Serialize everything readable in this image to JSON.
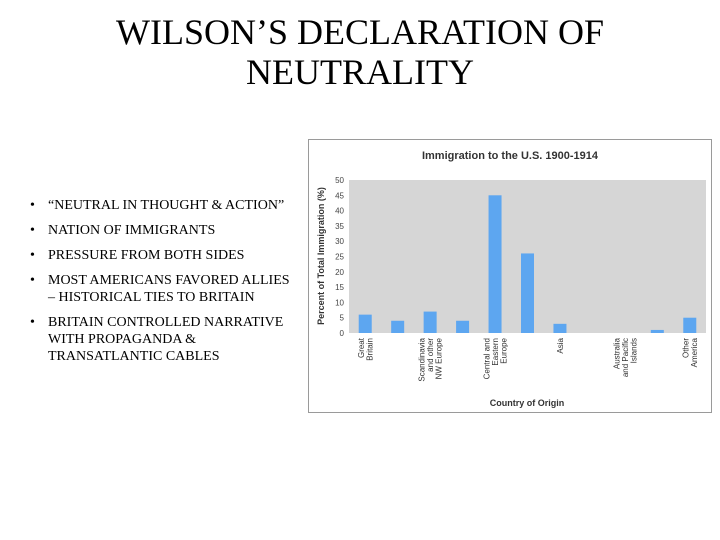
{
  "slide": {
    "title_line1": "WILSON’S DECLARATION OF",
    "title_line2": "NEUTRALITY",
    "bullets": [
      "“NEUTRAL IN THOUGHT & ACTION”",
      "NATION OF IMMIGRANTS",
      "PRESSURE FROM BOTH SIDES",
      "MOST AMERICANS FAVORED ALLIES – HISTORICAL TIES TO BRITAIN",
      "BRITAIN CONTROLLED NARRATIVE WITH PROPAGANDA & TRANSATLANTIC CABLES"
    ],
    "bullet_symbol": "•"
  },
  "chart_data": {
    "type": "bar",
    "title": "Immigration to the U.S. 1900-1914",
    "xlabel": "Country of Origin",
    "ylabel": "Percent of Total Immigration (%)",
    "ylim": [
      0,
      50
    ],
    "yticks": [
      0,
      5,
      10,
      15,
      20,
      25,
      30,
      35,
      40,
      45,
      50
    ],
    "grid": false,
    "legend": "none",
    "bar_color": "#5da6f0",
    "plot_bg": "#d6d6d6",
    "values": [
      6,
      4,
      7,
      4,
      45,
      26,
      3,
      0,
      0,
      1,
      5
    ],
    "category_labels": [
      {
        "index": 0,
        "lines": [
          "Great",
          "Britain"
        ]
      },
      {
        "index": 2,
        "lines": [
          "Scandinavia",
          "and other",
          "NW Europe"
        ]
      },
      {
        "index": 4,
        "lines": [
          "Central and",
          "Eastern",
          "Europe"
        ]
      },
      {
        "index": 6,
        "lines": [
          "Asia"
        ]
      },
      {
        "index": 8,
        "lines": [
          "Australia",
          "and Pacific",
          "Islands"
        ]
      },
      {
        "index": 10,
        "lines": [
          "Other",
          "America"
        ]
      }
    ]
  }
}
